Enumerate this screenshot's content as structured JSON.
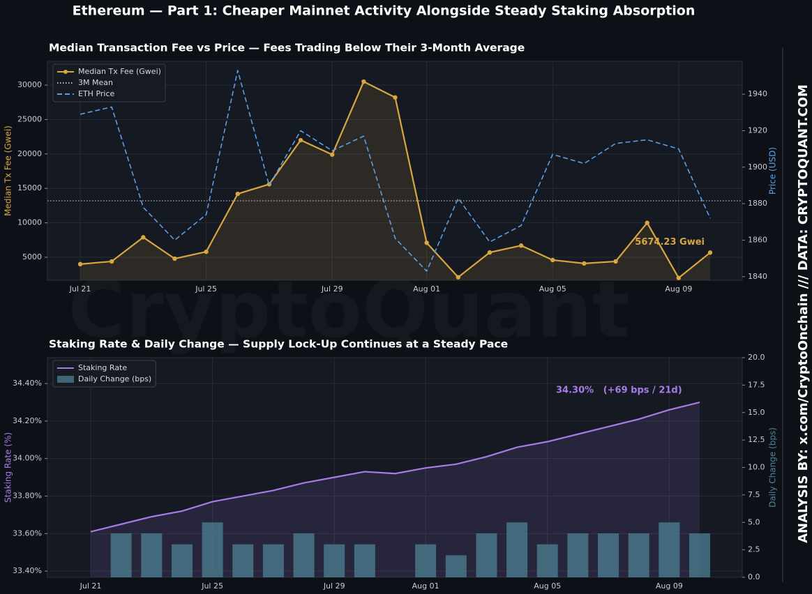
{
  "title": "Ethereum — Part 1: Cheaper Mainnet Activity Alongside Steady Staking Absorption",
  "watermark": "CryptoQuant",
  "side_text": "ANALYSIS BY: x.com/CryptoOnchain   ///   DATA: CRYPTOQUANT.COM",
  "chart_data": [
    {
      "type": "line",
      "title": "Median Transaction Fee vs Price — Fees Trading Below Their 3-Month Average",
      "categories": [
        "Jul 21",
        null,
        null,
        null,
        "Jul 25",
        null,
        null,
        null,
        "Jul 29",
        null,
        null,
        "Aug 01",
        null,
        null,
        null,
        "Aug 05",
        null,
        null,
        null,
        "Aug 09",
        null
      ],
      "ylabel": "Median Tx Fee (Gwei)",
      "y2label": "Price (USD)",
      "ylim": [
        1660,
        33440
      ],
      "yticks": [
        5000,
        10000,
        15000,
        20000,
        25000,
        30000
      ],
      "y2lim": [
        1838,
        1958
      ],
      "y2ticks": [
        1840,
        1860,
        1880,
        1900,
        1920,
        1940
      ],
      "grid": true,
      "legend": "upper left",
      "reference_lines": [
        {
          "name": "3M Mean",
          "value": 13200,
          "color": "#b8bcc4",
          "style": "dotted"
        }
      ],
      "series": [
        {
          "name": "Median Tx Fee (Gwei)",
          "color": "#d9a63f",
          "style": "solid",
          "markers": true,
          "area": true,
          "values": [
            4000,
            4400,
            7900,
            4800,
            5800,
            14200,
            15600,
            22000,
            19900,
            30500,
            28200,
            7100,
            2100,
            5700,
            6700,
            4600,
            4100,
            4400,
            10000,
            2000,
            5674.23
          ],
          "value_labels": [
            null,
            null,
            null,
            null,
            null,
            null,
            null,
            null,
            null,
            null,
            null,
            null,
            null,
            null,
            null,
            null,
            null,
            null,
            null,
            null,
            "5674.23 Gwei"
          ]
        },
        {
          "name": "ETH Price",
          "color": "#5b9ee6",
          "style": "dashed",
          "axis": "y2",
          "values": [
            1929,
            1933,
            1878,
            1860,
            1874,
            1953,
            1890,
            1920,
            1909,
            1917,
            1861,
            1843,
            1883,
            1859,
            1868,
            1907,
            1902,
            1913,
            1915,
            1910,
            1872
          ]
        }
      ]
    },
    {
      "type": "combo",
      "title": "Staking Rate & Daily Change — Supply Lock-Up Continues at a Steady Pace",
      "categories": [
        "Jul 21",
        null,
        null,
        null,
        "Jul 25",
        null,
        null,
        null,
        "Jul 29",
        null,
        null,
        "Aug 01",
        null,
        null,
        null,
        "Aug 05",
        null,
        null,
        null,
        "Aug 09",
        null
      ],
      "ylabel": "Staking Rate (%)",
      "y2label": "Daily Change (bps)",
      "ylim": [
        33.367,
        34.538
      ],
      "yticks": [
        {
          "value": 33.4,
          "label": "33.40%"
        },
        {
          "value": 33.6,
          "label": "33.60%"
        },
        {
          "value": 33.8,
          "label": "33.80%"
        },
        {
          "value": 34.0,
          "label": "34.00%"
        },
        {
          "value": 34.2,
          "label": "34.20%"
        },
        {
          "value": 34.4,
          "label": "34.40%"
        }
      ],
      "y2lim": [
        0,
        20
      ],
      "y2ticks": [
        {
          "value": 0,
          "label": "0.0"
        },
        2.5,
        {
          "value": 5,
          "label": "5.0"
        },
        7.5,
        {
          "value": 10,
          "label": "10.0"
        },
        12.5,
        {
          "value": 15,
          "label": "15.0"
        },
        17.5,
        {
          "value": 20,
          "label": "20.0"
        }
      ],
      "grid": true,
      "legend": "upper left",
      "annotations": [
        "34.30%   (+69 bps / 21d)"
      ],
      "series": [
        {
          "name": "Staking Rate",
          "color": "#a77be6",
          "type": "line",
          "style": "solid",
          "area": true,
          "values": [
            33.61,
            33.65,
            33.69,
            33.72,
            33.77,
            33.8,
            33.83,
            33.87,
            33.9,
            33.93,
            33.92,
            33.95,
            33.97,
            34.01,
            34.06,
            34.09,
            34.13,
            34.17,
            34.21,
            34.26,
            34.3
          ]
        },
        {
          "name": "Daily Change (bps)",
          "color": "#4f8497",
          "type": "bar",
          "axis": "y2",
          "values": [
            null,
            4,
            4,
            3,
            5,
            3,
            3,
            4,
            3,
            3,
            null,
            3,
            2,
            4,
            5,
            3,
            4,
            4,
            4,
            5,
            4
          ]
        }
      ]
    }
  ]
}
